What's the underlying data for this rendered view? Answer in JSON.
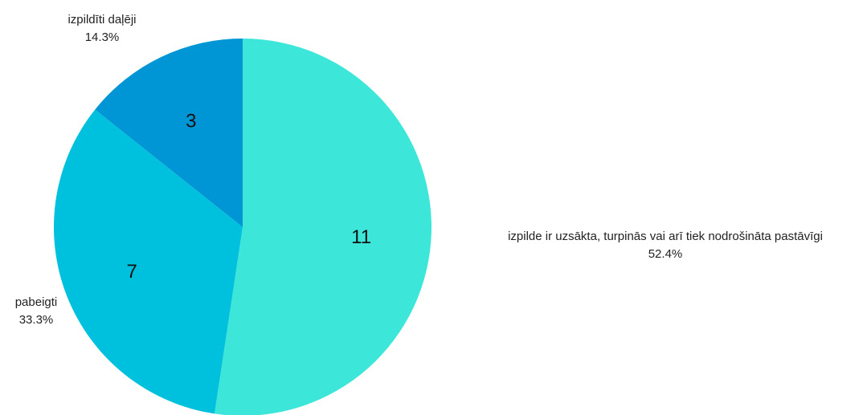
{
  "chart_data": {
    "type": "pie",
    "title": "",
    "slices": [
      {
        "name": "izpilde ir uzsākta, turpinās vai arī tiek nodrošināta pastāvīgi",
        "value": 11,
        "value_label": "11",
        "percent": 52.4,
        "percent_label": "52.4%",
        "color": "#3CE6D9"
      },
      {
        "name": "pabeigti",
        "value": 7,
        "value_label": "7",
        "percent": 33.3,
        "percent_label": "33.3%",
        "color": "#00C1DD"
      },
      {
        "name": "izpildīti daļēji",
        "value": 3,
        "value_label": "3",
        "percent": 14.3,
        "percent_label": "14.3%",
        "color": "#0096D6"
      }
    ]
  }
}
